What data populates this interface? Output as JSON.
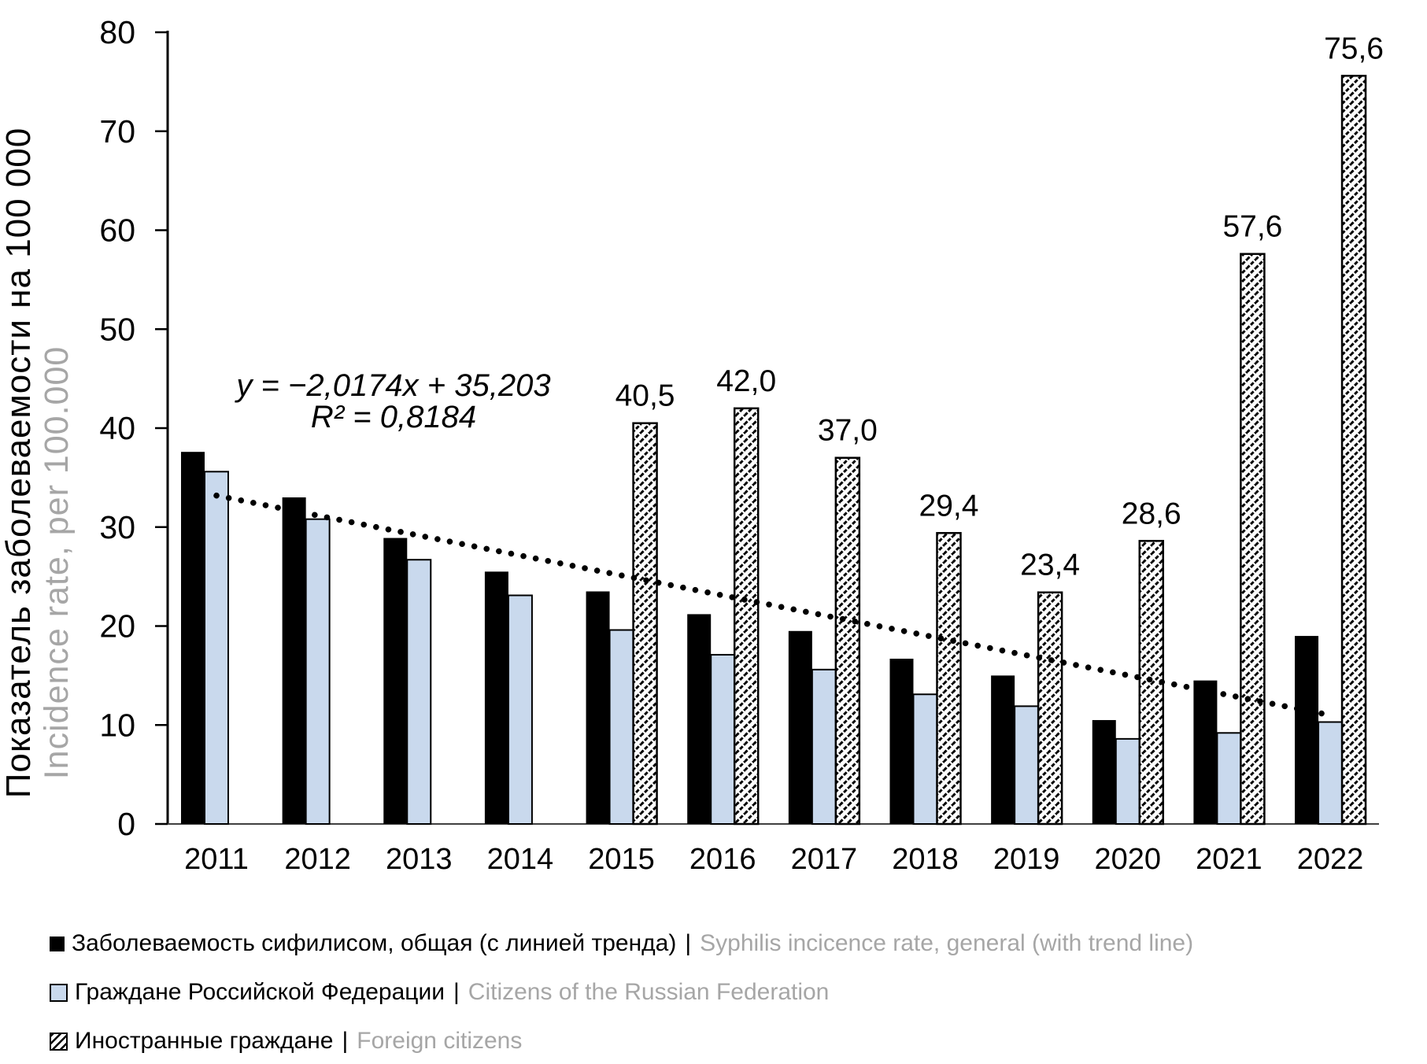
{
  "chart_data": {
    "type": "bar",
    "title": "",
    "categories": [
      "2011",
      "2012",
      "2013",
      "2014",
      "2015",
      "2016",
      "2017",
      "2018",
      "2019",
      "2020",
      "2021",
      "2022"
    ],
    "series": [
      {
        "name": "Заболеваемость сифилисом, общая (с линией тренда)",
        "name_en": "Syphilis incicence rate, general (with trend line)",
        "style": "solid-black",
        "color": "#000000",
        "values": [
          37.6,
          33.0,
          28.9,
          25.5,
          23.5,
          21.2,
          19.5,
          16.7,
          15.0,
          10.5,
          14.5,
          19.0
        ]
      },
      {
        "name": "Граждане Российской Федерации",
        "name_en": "Citizens of the Russian Federation",
        "style": "solid-light-blue",
        "color": "#c9d9ed",
        "values": [
          35.6,
          30.8,
          26.7,
          23.1,
          19.6,
          17.1,
          15.6,
          13.1,
          11.9,
          8.6,
          9.2,
          10.3
        ]
      },
      {
        "name": "Иностранные граждане",
        "name_en": "Foreign citizens",
        "style": "diagonal-hatch",
        "color": "#000000",
        "values": [
          null,
          null,
          null,
          null,
          40.5,
          42.0,
          37.0,
          29.4,
          23.4,
          28.6,
          57.6,
          75.6
        ],
        "data_labels": [
          null,
          null,
          null,
          null,
          "40,5",
          "42,0",
          "37,0",
          "29,4",
          "23,4",
          "28,6",
          "57,6",
          "75,6"
        ]
      }
    ],
    "trend": {
      "equation": "y = −2,0174x + 35,203",
      "r2": "R² = 0,8184",
      "slope": -2.0174,
      "intercept": 35.203,
      "line_style": "dotted-black"
    },
    "ylabel_ru": "Показатель заболеваемости на 100 000",
    "ylabel_en": "Incidence rate, per 100.000",
    "xlabel": "",
    "ylim": [
      0,
      80
    ],
    "ytick_step": 10,
    "grid": "off",
    "legend_position": "bottom-left"
  },
  "legend": {
    "items": [
      {
        "marker": "black-square",
        "ru": "Заболеваемость сифилисом, общая (с линией тренда)",
        "sep": "|",
        "en": "Syphilis incicence rate, general (with trend line)"
      },
      {
        "marker": "blue-square",
        "ru": "Граждане Российской Федерации",
        "sep": "|",
        "en": "Citizens of the Russian Federation"
      },
      {
        "marker": "hatched-square",
        "ru": "Иностранные граждане",
        "sep": "|",
        "en": "Foreign citizens"
      }
    ]
  },
  "colors": {
    "bar_general": "#000000",
    "bar_citizens": "#c9d9ed",
    "secondary_text": "#a6a6a6",
    "axis": "#000000"
  }
}
